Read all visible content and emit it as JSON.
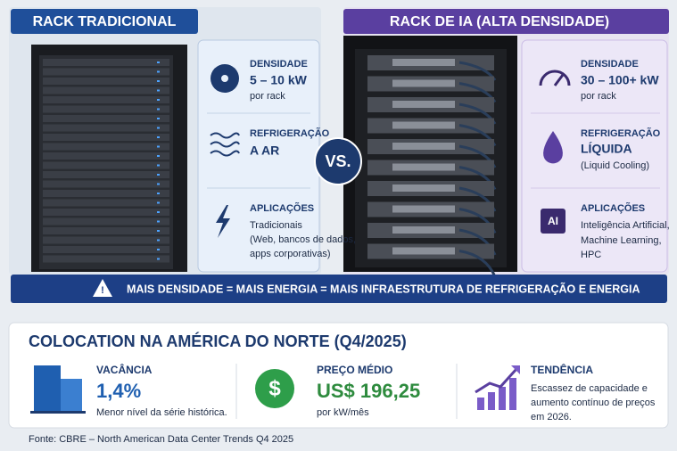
{
  "left_panel": {
    "title": "RACK TRADICIONAL",
    "density": {
      "label": "DENSIDADE",
      "value": "5 – 10 kW",
      "unit": "por rack"
    },
    "cooling": {
      "label": "REFRIGERAÇÃO",
      "value": "A AR"
    },
    "applications": {
      "label": "APLICAÇÕES",
      "lines": [
        "Tradicionais",
        "(Web, bancos de dados,",
        "apps corporativas)"
      ]
    }
  },
  "vs": "VS.",
  "right_panel": {
    "title": "RACK DE IA (ALTA DENSIDADE)",
    "density": {
      "label": "DENSIDADE",
      "value": "30 – 100+ kW",
      "unit": "por rack"
    },
    "cooling": {
      "label": "REFRIGERAÇÃO",
      "value": "LÍQUIDA",
      "note": "(Liquid Cooling)"
    },
    "applications": {
      "label": "APLICAÇÕES",
      "icon_text": "AI",
      "lines": [
        "Inteligência Artificial,",
        "Machine Learning,",
        "HPC"
      ]
    }
  },
  "banner": "MAIS DENSIDADE = MAIS ENERGIA = MAIS INFRAESTRUTURA DE REFRIGERAÇÃO E ENERGIA",
  "market": {
    "title": "COLOCATION NA AMÉRICA DO NORTE (Q4/2025)",
    "stats": [
      {
        "label": "VACÂNCIA",
        "value": "1,4%",
        "note": "Menor nível da série histórica."
      },
      {
        "label": "PREÇO MÉDIO",
        "icon_text": "$",
        "value": "US$ 196,25",
        "note": "por kW/mês"
      },
      {
        "label": "TENDÊNCIA",
        "lines": [
          "Escassez de capacidade e",
          "aumento contínuo de preços",
          "em 2026."
        ]
      }
    ]
  },
  "source": "Fonte: CBRE – North American Data Center Trends Q4 2025"
}
